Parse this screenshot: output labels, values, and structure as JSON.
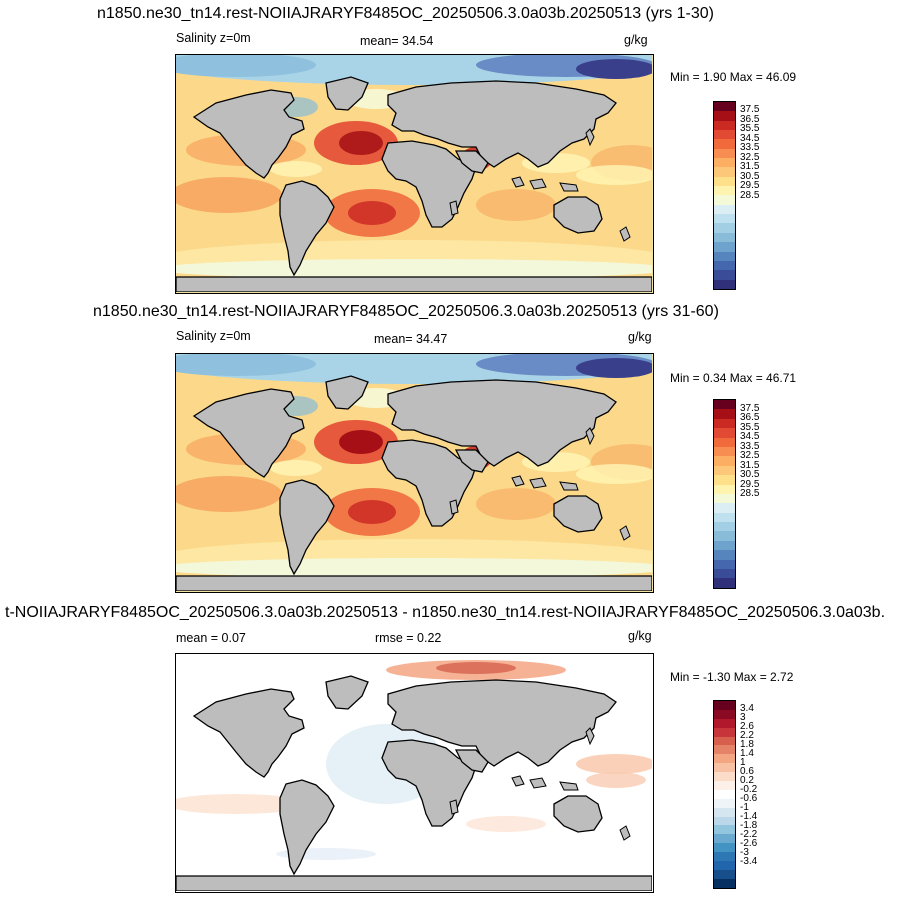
{
  "panels": [
    {
      "title": "n1850.ne30_tn14.rest-NOIIAJRARYF8485OC_20250506.3.0a03b.20250513 (yrs 1-30)",
      "left_label": "Salinity z=0m",
      "center_label": "mean=  34.54",
      "units": "g/kg",
      "minmax": "Min =   1.90 Max =  46.09",
      "kind": "field"
    },
    {
      "title": "n1850.ne30_tn14.rest-NOIIAJRARYF8485OC_20250506.3.0a03b.20250513 (yrs 31-60)",
      "left_label": "Salinity z=0m",
      "center_label": "mean=  34.47",
      "units": "g/kg",
      "minmax": "Min =   0.34 Max =  46.71",
      "kind": "field"
    },
    {
      "title": "t-NOIIAJRARYF8485OC_20250506.3.0a03b.20250513 - n1850.ne30_tn14.rest-NOIIAJRARYF8485OC_20250506.3.0a03b.",
      "left_label": "mean =   0.07",
      "center_label": "rmse =   0.22",
      "units": "g/kg",
      "minmax": "Min =  -1.30 Max =   2.72",
      "kind": "diff"
    }
  ],
  "chart_data": [
    {
      "type": "heatmap",
      "title": "n1850.ne30_tn14.rest-NOIIAJRARYF8485OC_20250506.3.0a03b.20250513 (yrs 1-30)",
      "variable": "Salinity z=0m",
      "units": "g/kg",
      "mean": 34.54,
      "min": 1.9,
      "max": 46.09,
      "colorbar_ticks": [
        "37.5",
        "36.5",
        "35.5",
        "34.5",
        "33.5",
        "32.5",
        "31.5",
        "30.5",
        "29.5",
        "28.5"
      ],
      "colorbar_colors": [
        "#67001f",
        "#a50f15",
        "#cb2a23",
        "#e34a33",
        "#f16a3c",
        "#f88d52",
        "#fcae62",
        "#fdc77a",
        "#fee08b",
        "#fff3b0",
        "#f4f9d8",
        "#dbeef4",
        "#bfe0ee",
        "#a3cfe4",
        "#88bcd9",
        "#6da3cc",
        "#5685be",
        "#4567ad",
        "#3a4b98",
        "#2f2f7a"
      ]
    },
    {
      "type": "heatmap",
      "title": "n1850.ne30_tn14.rest-NOIIAJRARYF8485OC_20250506.3.0a03b.20250513 (yrs 31-60)",
      "variable": "Salinity z=0m",
      "units": "g/kg",
      "mean": 34.47,
      "min": 0.34,
      "max": 46.71,
      "colorbar_ticks": [
        "37.5",
        "36.5",
        "35.5",
        "34.5",
        "33.5",
        "32.5",
        "31.5",
        "30.5",
        "29.5",
        "28.5"
      ],
      "colorbar_colors": [
        "#67001f",
        "#a50f15",
        "#cb2a23",
        "#e34a33",
        "#f16a3c",
        "#f88d52",
        "#fcae62",
        "#fdc77a",
        "#fee08b",
        "#fff3b0",
        "#f4f9d8",
        "#dbeef4",
        "#bfe0ee",
        "#a3cfe4",
        "#88bcd9",
        "#6da3cc",
        "#5685be",
        "#4567ad",
        "#3a4b98",
        "#2f2f7a"
      ]
    },
    {
      "type": "heatmap",
      "title": "t-NOIIAJRARYF8485OC_20250506.3.0a03b.20250513 - n1850.ne30_tn14.rest-NOIIAJRARYF8485OC_20250506.3.0a03b.",
      "units": "g/kg",
      "mean": 0.07,
      "rmse": 0.22,
      "min": -1.3,
      "max": 2.72,
      "colorbar_ticks": [
        "3.4",
        "3",
        "2.6",
        "2.2",
        "1.8",
        "1.4",
        "1",
        "0.6",
        "0.2",
        "-0.2",
        "-0.6",
        "-1",
        "-1.4",
        "-1.8",
        "-2.2",
        "-2.6",
        "-3",
        "-3.4"
      ],
      "colorbar_colors": [
        "#67001f",
        "#8b0a23",
        "#b2182b",
        "#c7353a",
        "#d6604d",
        "#e58368",
        "#f4a582",
        "#f8c1a4",
        "#fbdcc8",
        "#fdf0e8",
        "#ffffff",
        "#eef4f8",
        "#d6e6f1",
        "#bcd7ea",
        "#92c5de",
        "#6aa9d0",
        "#4393c3",
        "#2d77b4",
        "#2166ac",
        "#174e8c",
        "#053061"
      ]
    }
  ]
}
